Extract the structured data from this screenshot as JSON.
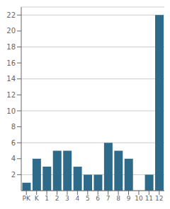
{
  "chart_data": {
    "type": "bar",
    "categories": [
      "PK",
      "K",
      "1",
      "2",
      "3",
      "4",
      "5",
      "6",
      "7",
      "8",
      "9",
      "10",
      "11",
      "12"
    ],
    "values": [
      1,
      4,
      3,
      5,
      5,
      3,
      2,
      2,
      6,
      5,
      4,
      0,
      2,
      22
    ],
    "color": "#2e6b8a",
    "ylim": [
      0,
      23
    ],
    "yticks": [
      2,
      4,
      6,
      8,
      10,
      12,
      14,
      16,
      18,
      20,
      22
    ],
    "grid": true
  }
}
